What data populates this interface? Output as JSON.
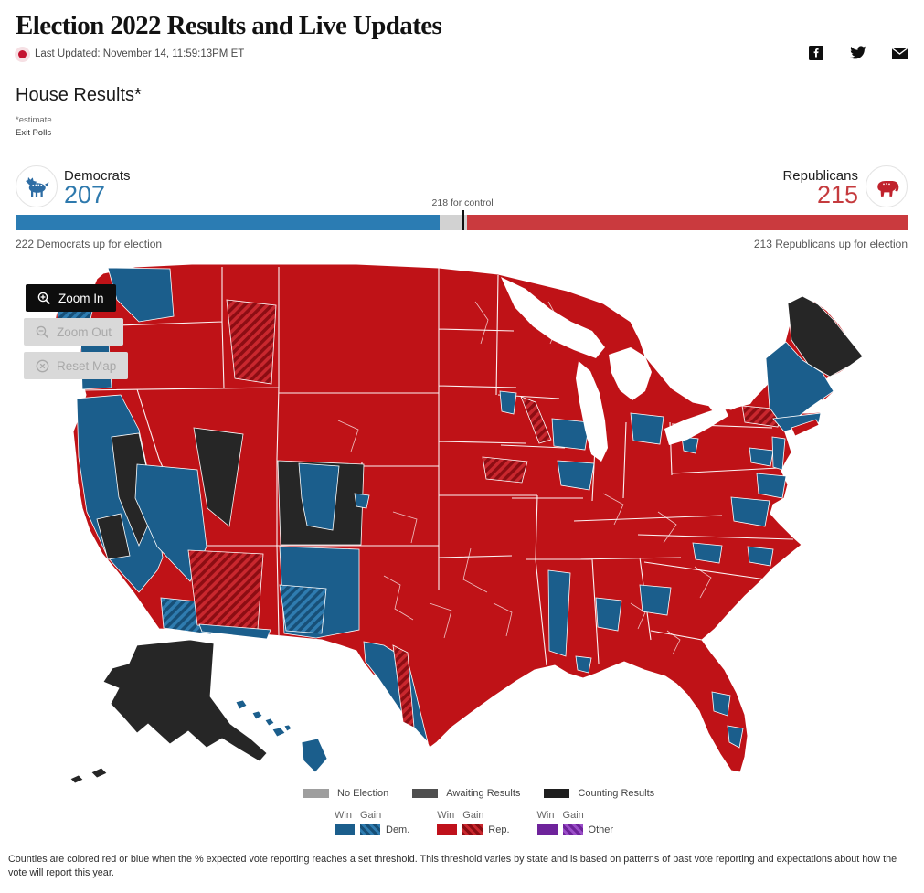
{
  "page": {
    "title": "Election 2022 Results and Live Updates",
    "last_updated": "Last Updated: November 14, 11:59:13PM ET"
  },
  "social_icons": [
    "facebook",
    "twitter",
    "email"
  ],
  "section": {
    "heading": "House Results*",
    "estimate_note": "*estimate",
    "exit_polls_link": "Exit Polls"
  },
  "race": {
    "democrats": {
      "label": "Democrats",
      "seats": "207",
      "up_for_election": "222 Democrats up for election"
    },
    "republicans": {
      "label": "Republicans",
      "seats": "215",
      "up_for_election": "213 Republicans up for election"
    },
    "control_label": "218 for control",
    "dem_seats": 207,
    "rep_seats": 215,
    "undecided_seats": 13,
    "total_seats": 435,
    "control_threshold": 218,
    "dem_color": "#2b7cb3",
    "rep_color": "#ca3a3e",
    "undecided_color": "#d2d2d2"
  },
  "map": {
    "buttons": {
      "zoom_in": "Zoom In",
      "zoom_out": "Zoom Out",
      "reset": "Reset Map"
    },
    "legend_row1": [
      {
        "label": "No Election",
        "color": "#9e9e9e"
      },
      {
        "label": "Awaiting Results",
        "color": "#4f4f4f"
      },
      {
        "label": "Counting Results",
        "color": "#1f1f1f"
      }
    ],
    "legend_row2": [
      {
        "win_label": "Win",
        "gain_label": "Gain",
        "party": "Dem.",
        "win_color": "#1b5e8c"
      },
      {
        "win_label": "Win",
        "gain_label": "Gain",
        "party": "Rep.",
        "win_color": "#bf111b"
      },
      {
        "win_label": "Win",
        "gain_label": "Gain",
        "party": "Other",
        "win_color": "#6e239b"
      }
    ],
    "colors": {
      "rep": "#bf1217",
      "dem": "#1b5e8c",
      "counting": "#262626",
      "other": "#6e239b"
    },
    "regions": {
      "lower48_base": "rep",
      "wa_seattle": "dem",
      "wa_olympic_gain": "dem_gain",
      "or_coast": "dem",
      "ca_coast": "dem",
      "ca_valley_1": "counting",
      "ca_valley_2": "counting",
      "socal_gain": "dem_gain",
      "nv_south": "dem",
      "nv_east": "counting",
      "id_gain": "rep_gain",
      "ut_main": "counting",
      "ut_slc": "dem",
      "az_center_gain": "rep_gain",
      "az_south": "dem",
      "nm": "dem",
      "nm_gain": "dem_gain",
      "tx_south": "dem",
      "tx_border_gain": "rep_gain",
      "co_denver": "dem",
      "mn_twin_cities": "dem",
      "wi_gain": "rep_gain",
      "wi_south": "dem",
      "il_chicago": "dem",
      "mi_detroit": "dem",
      "ia_gain": "rep_gain",
      "ms_delta": "dem",
      "al_birmingham": "dem",
      "ga_atlanta": "dem",
      "la_nola": "dem",
      "fl_orlando": "dem",
      "fl_southeast": "dem",
      "nc_piedmont": "dem",
      "nc_coast": "dem",
      "va_north": "dem",
      "md_dc": "dem",
      "pa_philly": "dem",
      "pa_pittsburgh": "dem",
      "nj": "dem",
      "ny_upstate_gain": "rep_gain",
      "ny_city": "dem",
      "long_island": "rep",
      "new_england": "dem",
      "maine": "counting",
      "alaska": "counting",
      "ak_island_1": "counting",
      "ak_island_2": "counting",
      "hi_1": "dem",
      "hi_2": "dem",
      "hi_3": "dem",
      "hi_4": "dem",
      "hi_5": "dem",
      "hi_big_island": "dem"
    }
  },
  "footer": {
    "text": "Counties are colored red or blue when the % expected vote reporting reaches a set threshold. This threshold varies by state and is based on patterns of past vote reporting and expectations about how the vote will report this year."
  }
}
